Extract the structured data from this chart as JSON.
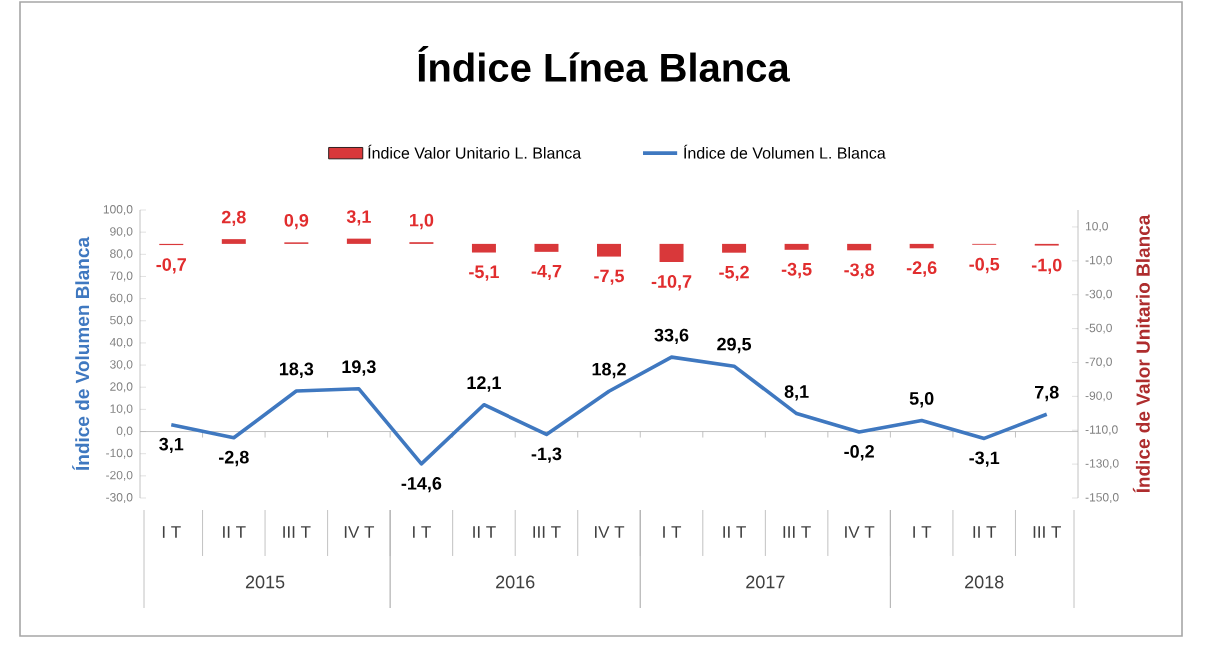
{
  "chart_data": {
    "type": "line",
    "title": "Índice Línea Blanca",
    "ylabel": "Índice de Volumen Blanca",
    "y2label": "Índice de Valor Unitario Blanca",
    "categories": [
      "I T",
      "II T",
      "III T",
      "IV T",
      "I T",
      "II T",
      "III T",
      "IV T",
      "I T",
      "II T",
      "III T",
      "IV T",
      "I T",
      "II T",
      "III T"
    ],
    "annotations": [
      "2015",
      "2016",
      "2017",
      "2018"
    ],
    "series": [
      {
        "name": "Índice Valor Unitario L. Blanca",
        "type": "bar",
        "axis": "y2",
        "color": "#d9383a",
        "values": [
          -0.7,
          2.8,
          0.9,
          3.1,
          1.0,
          -5.1,
          -4.7,
          -7.5,
          -10.7,
          -5.2,
          -3.5,
          -3.8,
          -2.6,
          -0.5,
          -1.0
        ],
        "value_labels": [
          "-0,7",
          "2,8",
          "0,9",
          "3,1",
          "1,0",
          "-5,1",
          "-4,7",
          "-7,5",
          "-10,7",
          "-5,2",
          "-3,5",
          "-3,8",
          "-2,6",
          "-0,5",
          "-1,0"
        ]
      },
      {
        "name": "Índice de Volumen L. Blanca",
        "color": "#3f78c0",
        "values": [
          3.1,
          -2.8,
          18.3,
          19.3,
          -14.6,
          12.1,
          -1.3,
          18.2,
          33.6,
          29.5,
          8.1,
          -0.2,
          5.0,
          -3.1,
          7.8
        ],
        "value_labels": [
          "3,1",
          "-2,8",
          "18,3",
          "19,3",
          "-14,6",
          "12,1",
          "-1,3",
          "18,2",
          "33,6",
          "29,5",
          "8,1",
          "-0,2",
          "5,0",
          "-3,1",
          "7,8"
        ]
      }
    ],
    "ylim": [
      -30,
      100
    ],
    "yticks": [
      {
        "value": -30,
        "label": "-30,0"
      },
      {
        "value": -20,
        "label": "-20,0"
      },
      {
        "value": -10,
        "label": "-10,0"
      },
      {
        "value": 0,
        "label": "0,0"
      },
      {
        "value": 10,
        "label": "10,0"
      },
      {
        "value": 20,
        "label": "20,0"
      },
      {
        "value": 30,
        "label": "30,0"
      },
      {
        "value": 40,
        "label": "40,0"
      },
      {
        "value": 50,
        "label": "50,0"
      },
      {
        "value": 60,
        "label": "60,0"
      },
      {
        "value": 70,
        "label": "70,0"
      },
      {
        "value": 80,
        "label": "80,0"
      },
      {
        "value": 90,
        "label": "90,0"
      },
      {
        "value": 100,
        "label": "100,0"
      }
    ],
    "y2lim": [
      -150,
      20
    ],
    "y2ticks": [
      {
        "value": 10,
        "label": "10,0"
      },
      {
        "value": -10,
        "label": "-10,0"
      },
      {
        "value": -30,
        "label": "-30,0"
      },
      {
        "value": -50,
        "label": "-50,0"
      },
      {
        "value": -70,
        "label": "-70,0"
      },
      {
        "value": -90,
        "label": "-90,0"
      },
      {
        "value": -110,
        "label": "-110,0"
      },
      {
        "value": -130,
        "label": "-130,0"
      },
      {
        "value": -150,
        "label": "-150,0"
      }
    ],
    "data_labels": true,
    "legend": "top",
    "marker": "none"
  }
}
